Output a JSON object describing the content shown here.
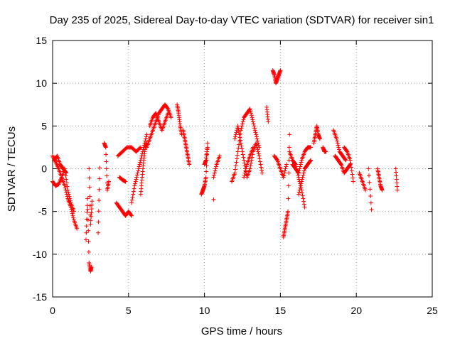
{
  "chart_data": {
    "type": "scatter",
    "title": "Day 235 of 2025, Sidereal Day-to-day VTEC variation (SDTVAR) for receiver sin1",
    "xlabel": "GPS time / hours",
    "ylabel": "SDTVAR / TECUs",
    "xlim": [
      0,
      25
    ],
    "ylim": [
      -15,
      15
    ],
    "xticks": [
      0,
      5,
      10,
      15,
      20,
      25
    ],
    "yticks": [
      -15,
      -10,
      -5,
      0,
      5,
      10,
      15
    ],
    "xtick_labels": [
      "0",
      "5",
      "10",
      "15",
      "20",
      "25"
    ],
    "ytick_labels": [
      "-15",
      "-10",
      "-5",
      "0",
      "5",
      "10",
      "15"
    ],
    "grid": true,
    "marker": "+",
    "color": "#ff0000",
    "segments": [
      {
        "x": [
          0.0,
          0.2,
          0.4,
          0.6,
          0.8,
          1.0,
          1.2,
          1.4,
          1.6
        ],
        "y": [
          1.5,
          0.8,
          0.0,
          -1.0,
          -2.0,
          -3.5,
          -4.5,
          -6.0,
          -7.0
        ]
      },
      {
        "x": [
          0.0,
          0.2,
          0.4,
          0.6,
          0.8,
          1.0,
          1.2,
          1.4
        ],
        "y": [
          -1.5,
          -2.0,
          -1.8,
          -1.0,
          0.0,
          -2.5,
          -4.0,
          -5.0
        ]
      },
      {
        "x": [
          0.1,
          0.3,
          0.5,
          0.7,
          0.9
        ],
        "y": [
          1.0,
          1.5,
          0.5,
          0.0,
          -0.5
        ]
      },
      {
        "x": [
          2.2,
          2.3,
          2.4,
          2.5,
          2.55
        ],
        "y": [
          -8.3,
          -3.5,
          -11.0,
          -12.0,
          -11.5
        ]
      },
      {
        "x": [
          2.4,
          2.5,
          2.6
        ],
        "y": [
          0.0,
          -6.5,
          -3.8
        ]
      },
      {
        "x": [
          3.0,
          3.1
        ],
        "y": [
          -7.5,
          0.1
        ]
      },
      {
        "x": [
          3.4,
          3.5,
          3.6,
          3.7
        ],
        "y": [
          3.0,
          2.5,
          -2.5,
          -1.5
        ]
      },
      {
        "x": [
          4.2,
          4.4,
          4.6,
          4.8,
          5.0,
          5.2
        ],
        "y": [
          -4.0,
          -4.5,
          -5.0,
          -5.5,
          -5.0,
          -5.5
        ]
      },
      {
        "x": [
          4.3,
          4.6,
          4.9,
          5.2,
          5.5,
          5.8
        ],
        "y": [
          1.5,
          2.0,
          2.5,
          2.5,
          2.0,
          2.5
        ]
      },
      {
        "x": [
          4.4,
          4.6,
          4.8
        ],
        "y": [
          -1.0,
          -1.3,
          -1.5
        ]
      },
      {
        "x": [
          5.2,
          5.4,
          5.6,
          5.8,
          6.0,
          6.2
        ],
        "y": [
          -4.0,
          -2.0,
          -0.5,
          1.0,
          2.5,
          4.0
        ]
      },
      {
        "x": [
          5.8,
          5.9,
          6.0,
          6.1,
          6.2
        ],
        "y": [
          -3.0,
          -1.0,
          1.0,
          2.5,
          3.0
        ]
      },
      {
        "x": [
          6.2,
          6.4,
          6.6,
          6.8,
          7.0,
          7.2,
          7.4,
          7.6,
          7.8
        ],
        "y": [
          2.5,
          3.5,
          4.5,
          5.5,
          6.5,
          7.0,
          7.5,
          7.0,
          6.0
        ]
      },
      {
        "x": [
          6.4,
          6.6,
          6.8,
          7.0,
          7.2,
          7.4,
          7.6
        ],
        "y": [
          5.0,
          6.0,
          6.5,
          5.5,
          4.5,
          5.5,
          6.5
        ]
      },
      {
        "x": [
          8.2,
          8.3,
          8.4,
          8.5
        ],
        "y": [
          7.5,
          6.5,
          5.0,
          4.0
        ]
      },
      {
        "x": [
          8.6,
          8.7,
          8.8,
          8.9,
          9.0
        ],
        "y": [
          4.5,
          3.5,
          2.5,
          1.5,
          0.5
        ]
      },
      {
        "x": [
          9.8,
          9.9,
          10.0,
          10.1,
          10.2
        ],
        "y": [
          -3.0,
          -2.5,
          -2.0,
          -1.0,
          3.0
        ]
      },
      {
        "x": [
          10.0,
          10.1,
          10.2
        ],
        "y": [
          0.5,
          1.0,
          2.5
        ]
      },
      {
        "x": [
          10.6,
          10.8,
          11.0
        ],
        "y": [
          -1.0,
          0.5,
          1.5
        ]
      },
      {
        "x": [
          10.6
        ],
        "y": [
          -3.6
        ]
      },
      {
        "x": [
          11.8,
          12.0,
          12.2,
          12.4,
          12.6,
          12.8,
          13.0,
          13.2,
          13.4,
          13.6
        ],
        "y": [
          -1.5,
          -0.5,
          2.0,
          4.5,
          6.0,
          6.5,
          7.0,
          5.5,
          4.0,
          2.5
        ]
      },
      {
        "x": [
          12.0,
          12.2,
          12.4,
          12.6,
          12.8,
          13.0,
          13.2,
          13.4,
          13.6,
          13.8
        ],
        "y": [
          3.5,
          5.0,
          3.0,
          1.0,
          -1.0,
          0.0,
          2.0,
          3.0,
          1.5,
          -0.5
        ]
      },
      {
        "x": [
          12.6,
          12.8,
          13.0,
          13.2
        ],
        "y": [
          -1.0,
          0.5,
          1.5,
          2.5
        ]
      },
      {
        "x": [
          14.1,
          14.2
        ],
        "y": [
          7.2,
          5.5
        ]
      },
      {
        "x": [
          14.5,
          14.6,
          14.7,
          14.8,
          14.9,
          15.0
        ],
        "y": [
          11.5,
          11.0,
          10.0,
          10.5,
          11.0,
          11.5
        ]
      },
      {
        "x": [
          14.6,
          14.8,
          15.0,
          15.2,
          15.4
        ],
        "y": [
          1.5,
          1.0,
          0.0,
          -1.0,
          0.5
        ]
      },
      {
        "x": [
          15.2,
          15.3,
          15.4,
          15.5,
          15.6
        ],
        "y": [
          -8.0,
          -7.0,
          -6.0,
          -5.0,
          4.0
        ]
      },
      {
        "x": [
          15.6,
          15.8,
          16.0,
          16.2,
          16.4,
          16.6
        ],
        "y": [
          2.0,
          1.0,
          0.5,
          -1.0,
          -2.5,
          -4.5
        ]
      },
      {
        "x": [
          15.8,
          16.0,
          16.2,
          16.4,
          16.6,
          16.8,
          17.0
        ],
        "y": [
          0.5,
          0.0,
          -0.5,
          1.0,
          2.0,
          2.5,
          2.5
        ]
      },
      {
        "x": [
          16.2,
          16.4,
          16.6,
          16.8,
          17.0
        ],
        "y": [
          -3.0,
          -1.5,
          0.0,
          0.5,
          1.0
        ]
      },
      {
        "x": [
          17.2,
          17.3,
          17.4,
          17.5,
          17.6
        ],
        "y": [
          3.0,
          4.0,
          5.0,
          4.0,
          3.5
        ]
      },
      {
        "x": [
          17.8,
          17.9,
          18.0
        ],
        "y": [
          2.5,
          2.0,
          2.0
        ]
      },
      {
        "x": [
          18.5,
          18.7,
          18.9,
          19.1,
          19.3
        ],
        "y": [
          4.5,
          3.5,
          2.0,
          1.5,
          1.0
        ]
      },
      {
        "x": [
          18.6,
          18.8,
          19.0,
          19.2,
          19.4,
          19.6
        ],
        "y": [
          1.5,
          1.0,
          0.5,
          -0.5,
          0.0,
          0.5
        ]
      },
      {
        "x": [
          19.2,
          19.4,
          19.6,
          19.8
        ],
        "y": [
          2.5,
          2.0,
          1.0,
          -1.5
        ]
      },
      {
        "x": [
          20.2,
          20.4,
          20.6
        ],
        "y": [
          -0.5,
          -1.5,
          -2.5
        ]
      },
      {
        "x": [
          20.8,
          21.0
        ],
        "y": [
          0.0,
          -4.8
        ]
      },
      {
        "x": [
          21.4,
          21.5,
          21.6,
          21.7
        ],
        "y": [
          0.0,
          -1.0,
          -2.0,
          -2.5
        ]
      },
      {
        "x": [
          22.6,
          22.7
        ],
        "y": [
          0.0,
          -2.5
        ]
      }
    ]
  }
}
